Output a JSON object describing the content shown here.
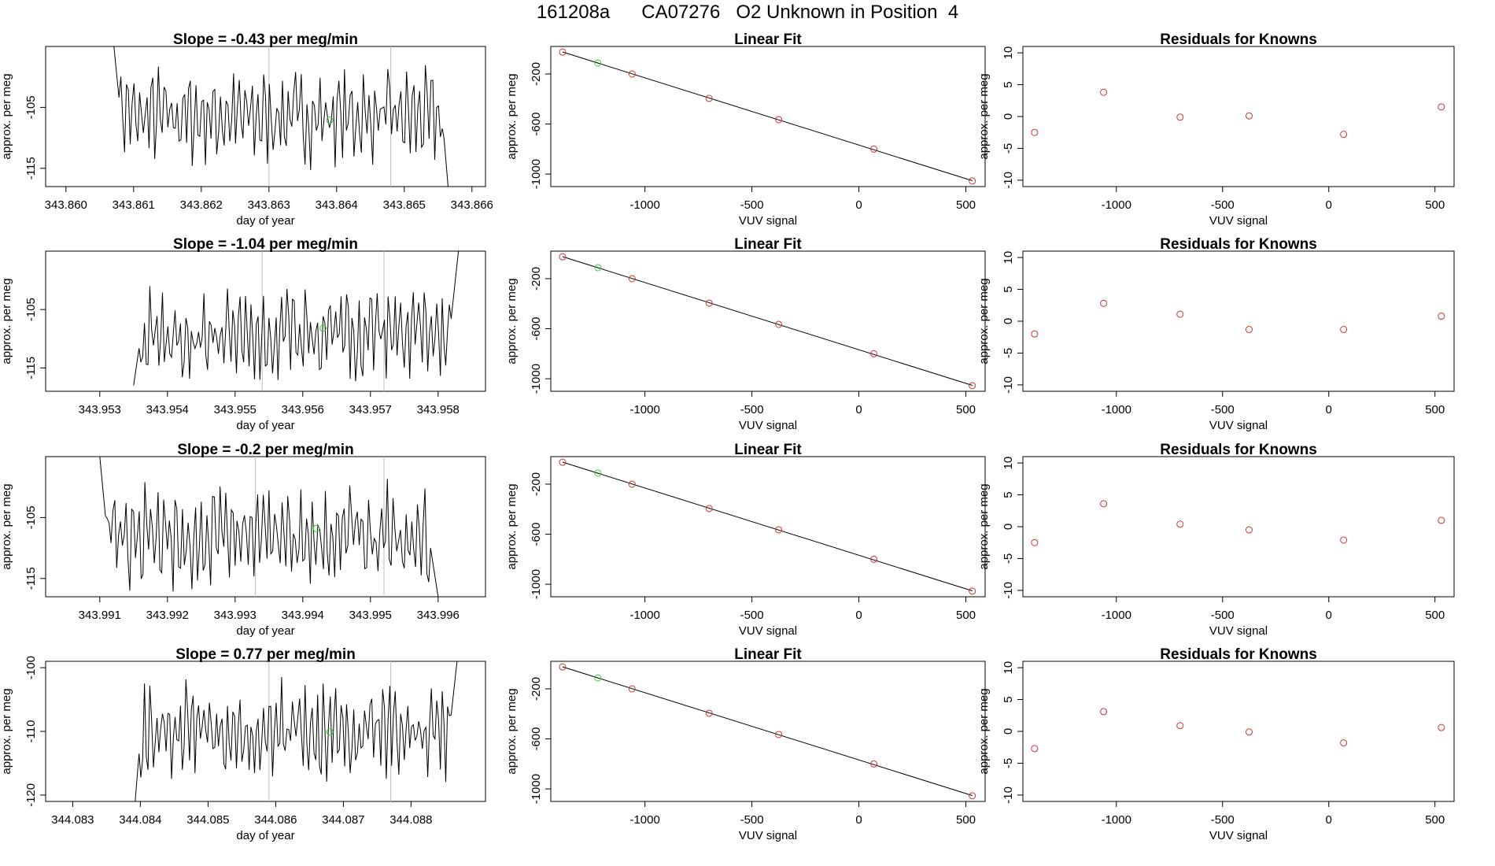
{
  "page": {
    "title": "161208a      CA07276   O2 Unknown in Position  4"
  },
  "colors": {
    "trace": "#000000",
    "marker_known": "#cd3333",
    "marker_highlight": "#33cc33",
    "vline": "#bebebe",
    "fit_line": "#000000"
  },
  "chart_data": [
    {
      "type": "line",
      "title": "Slope =  -0.43  per meg/min",
      "xlabel": "day of year",
      "ylabel": "approx. per meg",
      "xlim": [
        343.8597,
        343.8662
      ],
      "ylim": [
        -118,
        -95
      ],
      "xticks": [
        "343.860",
        "343.861",
        "343.862",
        "343.863",
        "343.864",
        "343.865",
        "343.866"
      ],
      "yticks": [
        "-115",
        "-105"
      ],
      "ytick_values": [
        -115,
        -105
      ],
      "trace_x_start": 343.8607,
      "trace_x_end": 343.8657,
      "trace_start": -94,
      "trace_end": -125,
      "trace_mean": -106.5,
      "trace_amp": 5.5,
      "vlines": [
        343.863,
        343.8648
      ],
      "marker": {
        "x": 343.8639,
        "y": -107.1
      }
    },
    {
      "type": "scatter",
      "title": "Linear Fit",
      "xlabel": "VUV signal",
      "ylabel": "approx. per meg",
      "xlim": [
        -1440,
        590
      ],
      "ylim": [
        -1100,
        20
      ],
      "xticks": [
        "-1000",
        "-500",
        "0",
        "500"
      ],
      "xtick_values": [
        -1000,
        -500,
        0,
        500
      ],
      "yticks": [
        "-1000",
        "-600",
        "-200"
      ],
      "ytick_values": [
        -1000,
        -600,
        -200
      ],
      "points": [
        {
          "x": -1385,
          "y": -25,
          "highlight": false
        },
        {
          "x": -1220,
          "y": -112,
          "highlight": true
        },
        {
          "x": -1060,
          "y": -200,
          "highlight": false
        },
        {
          "x": -700,
          "y": -395,
          "highlight": false
        },
        {
          "x": -375,
          "y": -565,
          "highlight": false
        },
        {
          "x": 70,
          "y": -800,
          "highlight": false
        },
        {
          "x": 530,
          "y": -1055,
          "highlight": false
        }
      ],
      "fit": [
        [
          -1385,
          -24
        ],
        [
          530,
          -1053
        ]
      ]
    },
    {
      "type": "scatter",
      "title": "Residuals for Knowns",
      "xlabel": "VUV signal",
      "ylabel": "approx. per meg",
      "xlim": [
        -1440,
        590
      ],
      "ylim": [
        -11,
        11
      ],
      "xticks": [
        "-1000",
        "-500",
        "0",
        "500"
      ],
      "xtick_values": [
        -1000,
        -500,
        0,
        500
      ],
      "yticks": [
        "-10",
        "-5",
        "0",
        "5",
        "10"
      ],
      "ytick_values": [
        -10,
        -5,
        0,
        5,
        10
      ],
      "points": [
        {
          "x": -1385,
          "y": -2.5
        },
        {
          "x": -1060,
          "y": 3.8
        },
        {
          "x": -700,
          "y": -0.1
        },
        {
          "x": -375,
          "y": 0.1
        },
        {
          "x": 70,
          "y": -2.8
        },
        {
          "x": 530,
          "y": 1.5
        }
      ]
    },
    {
      "type": "line",
      "title": "Slope =  -1.04  per meg/min",
      "xlabel": "day of year",
      "ylabel": "approx. per meg",
      "xlim": [
        343.9522,
        343.9587
      ],
      "ylim": [
        -119,
        -95
      ],
      "xticks": [
        "343.953",
        "343.954",
        "343.955",
        "343.956",
        "343.957",
        "343.958"
      ],
      "yticks": [
        "-115",
        "-105"
      ],
      "ytick_values": [
        -115,
        -105
      ],
      "trace_x_start": 343.9535,
      "trace_x_end": 343.9583,
      "trace_start": -118,
      "trace_end": -95,
      "trace_mean": -109.5,
      "trace_amp": 5.5,
      "vlines": [
        343.9554,
        343.9572
      ],
      "marker": {
        "x": 343.9563,
        "y": -108.2
      }
    },
    {
      "type": "scatter",
      "title": "Linear Fit",
      "xlabel": "VUV signal",
      "ylabel": "approx. per meg",
      "xlim": [
        -1440,
        590
      ],
      "ylim": [
        -1100,
        20
      ],
      "xticks": [
        "-1000",
        "-500",
        "0",
        "500"
      ],
      "xtick_values": [
        -1000,
        -500,
        0,
        500
      ],
      "yticks": [
        "-1000",
        "-600",
        "-200"
      ],
      "ytick_values": [
        -1000,
        -600,
        -200
      ],
      "points": [
        {
          "x": -1385,
          "y": -25,
          "highlight": false
        },
        {
          "x": -1220,
          "y": -112,
          "highlight": true
        },
        {
          "x": -1060,
          "y": -200,
          "highlight": false
        },
        {
          "x": -700,
          "y": -395,
          "highlight": false
        },
        {
          "x": -375,
          "y": -565,
          "highlight": false
        },
        {
          "x": 70,
          "y": -800,
          "highlight": false
        },
        {
          "x": 530,
          "y": -1055,
          "highlight": false
        }
      ],
      "fit": [
        [
          -1385,
          -24
        ],
        [
          530,
          -1053
        ]
      ]
    },
    {
      "type": "scatter",
      "title": "Residuals for Knowns",
      "xlabel": "VUV signal",
      "ylabel": "approx. per meg",
      "xlim": [
        -1440,
        590
      ],
      "ylim": [
        -11,
        11
      ],
      "xticks": [
        "-1000",
        "-500",
        "0",
        "500"
      ],
      "xtick_values": [
        -1000,
        -500,
        0,
        500
      ],
      "yticks": [
        "-10",
        "-5",
        "0",
        "5",
        "10"
      ],
      "ytick_values": [
        -10,
        -5,
        0,
        5,
        10
      ],
      "points": [
        {
          "x": -1385,
          "y": -2.0
        },
        {
          "x": -1060,
          "y": 2.8
        },
        {
          "x": -700,
          "y": 1.1
        },
        {
          "x": -375,
          "y": -1.3
        },
        {
          "x": 70,
          "y": -1.3
        },
        {
          "x": 530,
          "y": 0.8
        }
      ]
    },
    {
      "type": "line",
      "title": "Slope =  -0.2  per meg/min",
      "xlabel": "day of year",
      "ylabel": "approx. per meg",
      "xlim": [
        343.9902,
        343.9967
      ],
      "ylim": [
        -118,
        -95
      ],
      "xticks": [
        "343.991",
        "343.992",
        "343.993",
        "343.994",
        "343.995",
        "343.996"
      ],
      "yticks": [
        "-115",
        "-105"
      ],
      "ytick_values": [
        -115,
        -105
      ],
      "trace_x_start": 343.991,
      "trace_x_end": 343.996,
      "trace_start": -95,
      "trace_end": -118,
      "trace_mean": -108,
      "trace_amp": 6,
      "vlines": [
        343.9933,
        343.9952
      ],
      "marker": {
        "x": 343.9942,
        "y": -106.8
      }
    },
    {
      "type": "scatter",
      "title": "Linear Fit",
      "xlabel": "VUV signal",
      "ylabel": "approx. per meg",
      "xlim": [
        -1440,
        590
      ],
      "ylim": [
        -1100,
        20
      ],
      "xticks": [
        "-1000",
        "-500",
        "0",
        "500"
      ],
      "xtick_values": [
        -1000,
        -500,
        0,
        500
      ],
      "yticks": [
        "-1000",
        "-600",
        "-200"
      ],
      "ytick_values": [
        -1000,
        -600,
        -200
      ],
      "points": [
        {
          "x": -1385,
          "y": -25,
          "highlight": false
        },
        {
          "x": -1220,
          "y": -112,
          "highlight": true
        },
        {
          "x": -1060,
          "y": -200,
          "highlight": false
        },
        {
          "x": -700,
          "y": -395,
          "highlight": false
        },
        {
          "x": -375,
          "y": -565,
          "highlight": false
        },
        {
          "x": 70,
          "y": -800,
          "highlight": false
        },
        {
          "x": 530,
          "y": -1055,
          "highlight": false
        }
      ],
      "fit": [
        [
          -1385,
          -24
        ],
        [
          530,
          -1053
        ]
      ]
    },
    {
      "type": "scatter",
      "title": "Residuals for Knowns",
      "xlabel": "VUV signal",
      "ylabel": "approx. per meg",
      "xlim": [
        -1440,
        590
      ],
      "ylim": [
        -11,
        11
      ],
      "xticks": [
        "-1000",
        "-500",
        "0",
        "500"
      ],
      "xtick_values": [
        -1000,
        -500,
        0,
        500
      ],
      "yticks": [
        "-10",
        "-5",
        "0",
        "5",
        "10"
      ],
      "ytick_values": [
        -10,
        -5,
        0,
        5,
        10
      ],
      "points": [
        {
          "x": -1385,
          "y": -2.5
        },
        {
          "x": -1060,
          "y": 3.6
        },
        {
          "x": -700,
          "y": 0.4
        },
        {
          "x": -375,
          "y": -0.5
        },
        {
          "x": 70,
          "y": -2.1
        },
        {
          "x": 530,
          "y": 1.0
        }
      ]
    },
    {
      "type": "line",
      "title": "Slope =  0.77  per meg/min",
      "xlabel": "day of year",
      "ylabel": "approx. per meg",
      "xlim": [
        344.0826,
        344.0891
      ],
      "ylim": [
        -121,
        -99
      ],
      "xticks": [
        "344.083",
        "344.084",
        "344.085",
        "344.086",
        "344.087",
        "344.088"
      ],
      "yticks": [
        "-120",
        "-110",
        "-100"
      ],
      "ytick_values": [
        -120,
        -110,
        -100
      ],
      "trace_x_start": 344.0839,
      "trace_x_end": 344.0887,
      "trace_start": -124,
      "trace_end": -97,
      "trace_mean": -110,
      "trace_amp": 5.5,
      "vlines": [
        344.0859,
        344.0877
      ],
      "marker": {
        "x": 344.0868,
        "y": -110.1
      }
    },
    {
      "type": "scatter",
      "title": "Linear Fit",
      "xlabel": "VUV signal",
      "ylabel": "approx. per meg",
      "xlim": [
        -1440,
        590
      ],
      "ylim": [
        -1100,
        20
      ],
      "xticks": [
        "-1000",
        "-500",
        "0",
        "500"
      ],
      "xtick_values": [
        -1000,
        -500,
        0,
        500
      ],
      "yticks": [
        "-1000",
        "-600",
        "-200"
      ],
      "ytick_values": [
        -1000,
        -600,
        -200
      ],
      "points": [
        {
          "x": -1385,
          "y": -25,
          "highlight": false
        },
        {
          "x": -1220,
          "y": -112,
          "highlight": true
        },
        {
          "x": -1060,
          "y": -200,
          "highlight": false
        },
        {
          "x": -700,
          "y": -395,
          "highlight": false
        },
        {
          "x": -375,
          "y": -565,
          "highlight": false
        },
        {
          "x": 70,
          "y": -800,
          "highlight": false
        },
        {
          "x": 530,
          "y": -1055,
          "highlight": false
        }
      ],
      "fit": [
        [
          -1385,
          -24
        ],
        [
          530,
          -1053
        ]
      ]
    },
    {
      "type": "scatter",
      "title": "Residuals for Knowns",
      "xlabel": "VUV signal",
      "ylabel": "approx. per meg",
      "xlim": [
        -1440,
        590
      ],
      "ylim": [
        -11,
        11
      ],
      "xticks": [
        "-1000",
        "-500",
        "0",
        "500"
      ],
      "xtick_values": [
        -1000,
        -500,
        0,
        500
      ],
      "yticks": [
        "-10",
        "-5",
        "0",
        "5",
        "10"
      ],
      "ytick_values": [
        -10,
        -5,
        0,
        5,
        10
      ],
      "points": [
        {
          "x": -1385,
          "y": -2.7
        },
        {
          "x": -1060,
          "y": 3.1
        },
        {
          "x": -700,
          "y": 0.9
        },
        {
          "x": -375,
          "y": -0.1
        },
        {
          "x": 70,
          "y": -1.8
        },
        {
          "x": 530,
          "y": 0.6
        }
      ]
    }
  ]
}
